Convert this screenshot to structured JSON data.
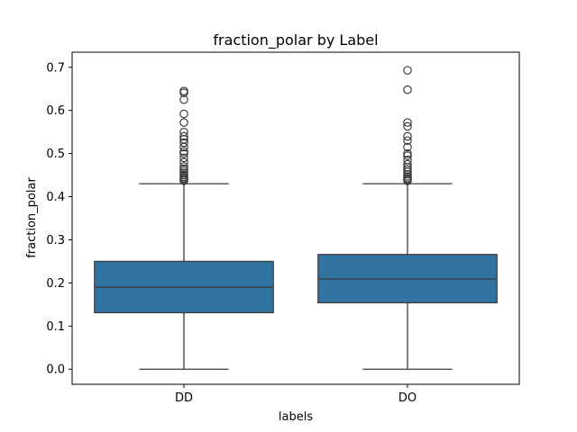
{
  "chart_data": {
    "type": "box",
    "title": "fraction_polar by Label",
    "xlabel": "labels",
    "ylabel": "fraction_polar",
    "ylim": [
      -0.035,
      0.735
    ],
    "yticks": [
      0.0,
      0.1,
      0.2,
      0.3,
      0.4,
      0.5,
      0.6,
      0.7
    ],
    "ytick_labels": [
      "0.0",
      "0.1",
      "0.2",
      "0.3",
      "0.4",
      "0.5",
      "0.6",
      "0.7"
    ],
    "categories": [
      "DD",
      "DO"
    ],
    "box_color": "#3274a1",
    "line_color": "#3d3d3d",
    "grid": false,
    "boxes": [
      {
        "label": "DD",
        "whisker_low": 0.0,
        "q1": 0.131,
        "median": 0.19,
        "q3": 0.25,
        "whisker_high": 0.43,
        "outliers": [
          0.437,
          0.44,
          0.443,
          0.446,
          0.45,
          0.455,
          0.46,
          0.465,
          0.47,
          0.48,
          0.49,
          0.5,
          0.505,
          0.515,
          0.525,
          0.533,
          0.54,
          0.55,
          0.572,
          0.592,
          0.625,
          0.641,
          0.645
        ]
      },
      {
        "label": "DO",
        "whisker_low": 0.0,
        "q1": 0.154,
        "median": 0.209,
        "q3": 0.266,
        "whisker_high": 0.43,
        "outliers": [
          0.437,
          0.44,
          0.443,
          0.447,
          0.452,
          0.458,
          0.463,
          0.468,
          0.475,
          0.485,
          0.495,
          0.5,
          0.515,
          0.53,
          0.54,
          0.563,
          0.572,
          0.648,
          0.693
        ]
      }
    ]
  }
}
